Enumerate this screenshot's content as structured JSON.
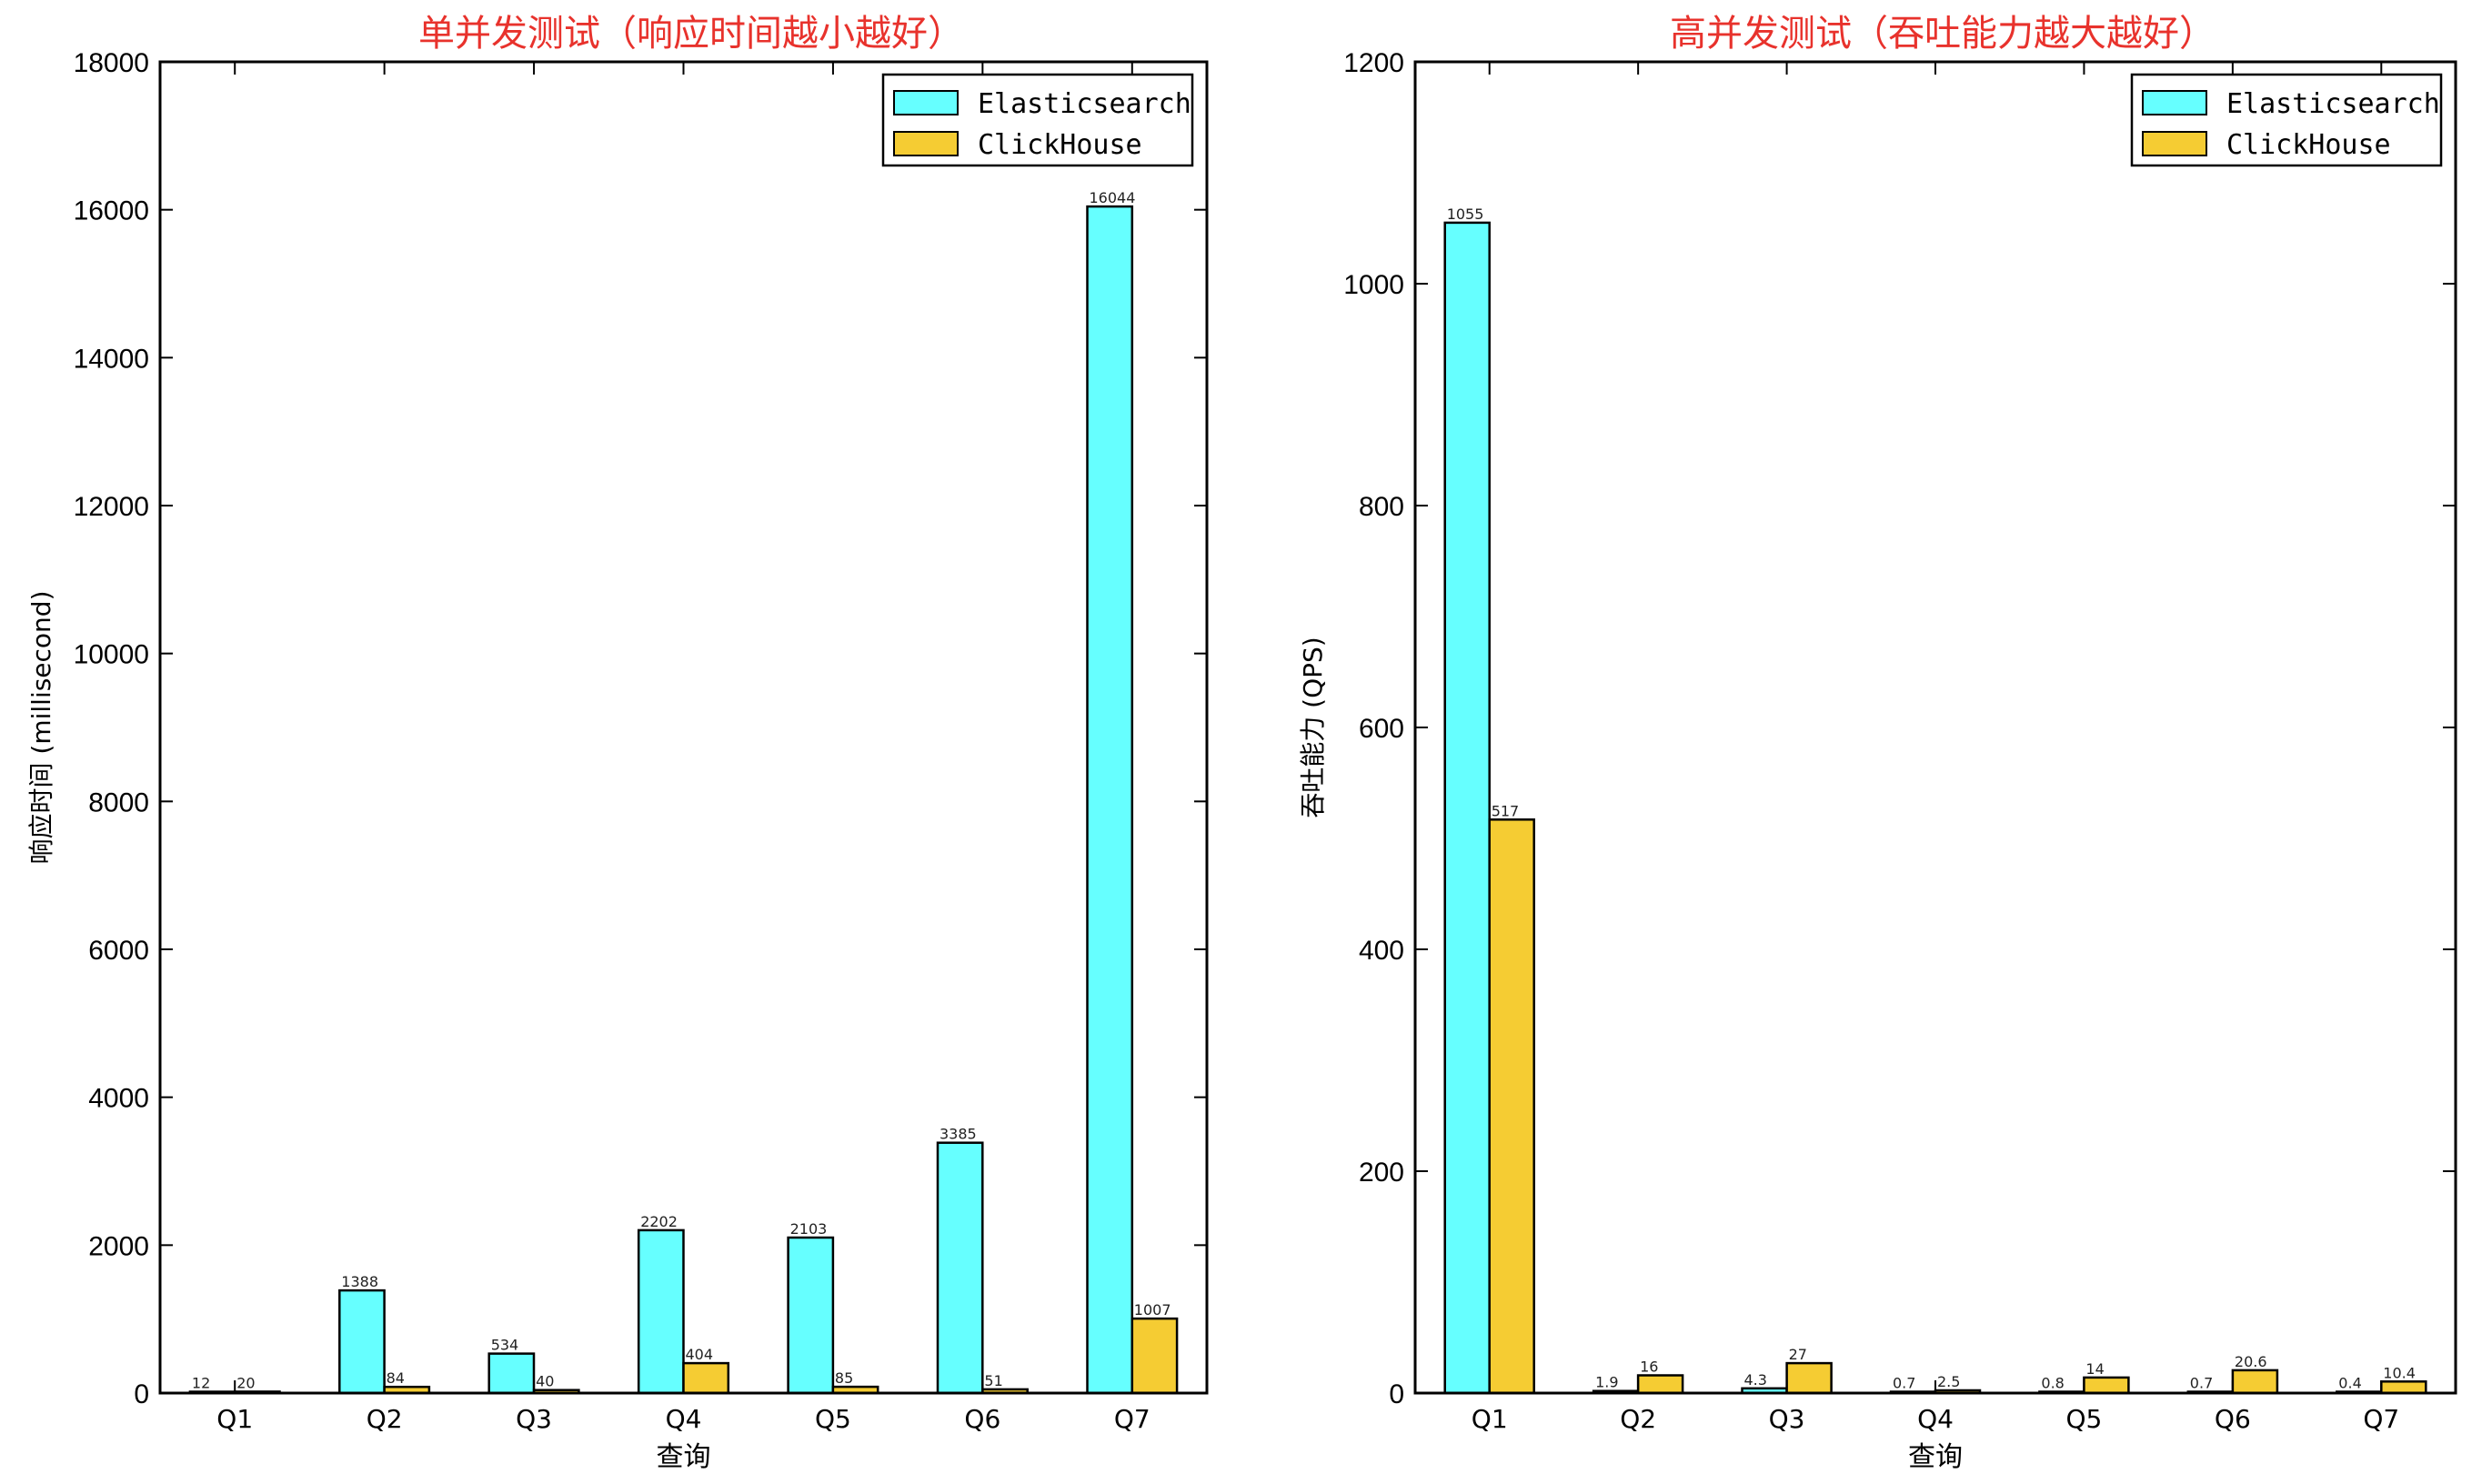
{
  "colors": {
    "elasticsearch": "#66ffff",
    "clickhouse": "#f5cc33",
    "title": "#e8322c",
    "axis": "#000000"
  },
  "chart_data": [
    {
      "type": "bar",
      "title": "单并发测试（响应时间越小越好）",
      "xlabel": "查询",
      "ylabel": "响应时间 (millisecond)",
      "ylim": [
        0,
        18000
      ],
      "yticks": [
        0,
        2000,
        4000,
        6000,
        8000,
        10000,
        12000,
        14000,
        16000,
        18000
      ],
      "categories": [
        "Q1",
        "Q2",
        "Q3",
        "Q4",
        "Q5",
        "Q6",
        "Q7"
      ],
      "legend_position": "top-right",
      "grid": false,
      "series": [
        {
          "name": "Elasticsearch",
          "values": [
            12,
            1388,
            534,
            2202,
            2103,
            3385,
            16044
          ],
          "labels": [
            "12",
            "1388",
            "534",
            "2202",
            "2103",
            "3385",
            "16044"
          ]
        },
        {
          "name": "ClickHouse",
          "values": [
            20,
            84,
            40,
            404,
            85,
            51,
            1007
          ],
          "labels": [
            "20",
            "84",
            "40",
            "404",
            "85",
            "51",
            "1007"
          ]
        }
      ]
    },
    {
      "type": "bar",
      "title": "高并发测试（吞吐能力越大越好）",
      "xlabel": "查询",
      "ylabel": "吞吐能力 (QPS)",
      "ylim": [
        0,
        1200
      ],
      "yticks": [
        0,
        200,
        400,
        600,
        800,
        1000,
        1200
      ],
      "categories": [
        "Q1",
        "Q2",
        "Q3",
        "Q4",
        "Q5",
        "Q6",
        "Q7"
      ],
      "legend_position": "top-right",
      "grid": false,
      "series": [
        {
          "name": "Elasticsearch",
          "values": [
            1055,
            1.9,
            4.3,
            0.7,
            0.8,
            0.7,
            0.4
          ],
          "labels": [
            "1055",
            "1.9",
            "4.3",
            "0.7",
            "0.8",
            "0.7",
            "0.4"
          ]
        },
        {
          "name": "ClickHouse",
          "values": [
            517,
            16,
            27,
            2.5,
            14,
            20.6,
            10.4
          ],
          "labels": [
            "517",
            "16",
            "27",
            "2.5",
            "14",
            "20.6",
            "10.4"
          ]
        }
      ]
    }
  ]
}
